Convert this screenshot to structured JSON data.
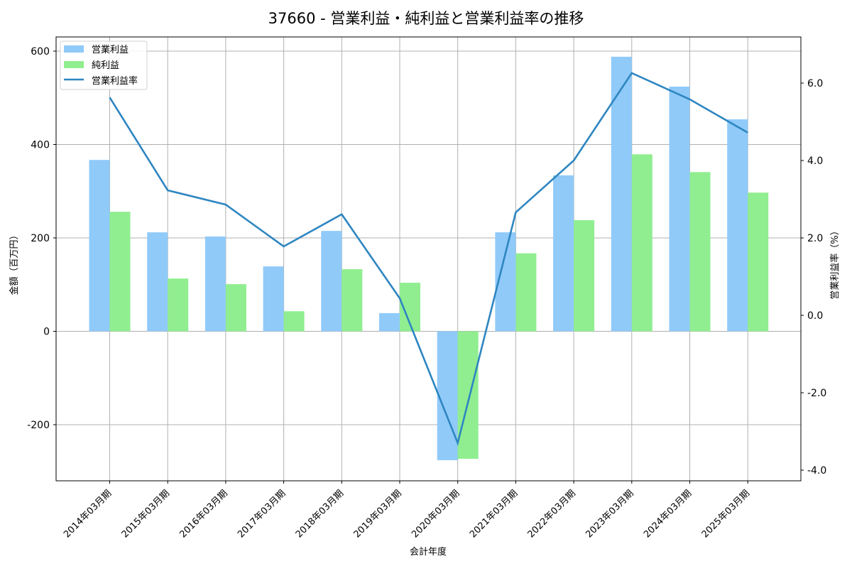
{
  "chart_data": {
    "type": "bar+line",
    "title": "37660 - 営業利益・純利益と営業利益率の推移",
    "xlabel": "会計年度",
    "ylabel": "金額（百万円）",
    "ylabel_right": "営業利益率（%）",
    "categories": [
      "2014年03月期",
      "2015年03月期",
      "2016年03月期",
      "2017年03月期",
      "2018年03月期",
      "2019年03月期",
      "2020年03月期",
      "2021年03月期",
      "2022年03月期",
      "2023年03月期",
      "2024年03月期",
      "2025年03月期"
    ],
    "series": [
      {
        "name": "営業利益",
        "type": "bar",
        "axis": "left",
        "color": "#90CAF9",
        "values": [
          367,
          212,
          203,
          139,
          215,
          39,
          -276,
          212,
          334,
          588,
          524,
          454
        ]
      },
      {
        "name": "純利益",
        "type": "bar",
        "axis": "left",
        "color": "#90EE90",
        "values": [
          256,
          113,
          101,
          43,
          133,
          104,
          -273,
          167,
          238,
          379,
          341,
          297
        ]
      },
      {
        "name": "営業利益率",
        "type": "line",
        "axis": "right",
        "color": "#2E86C1",
        "values": [
          5.63,
          3.23,
          2.86,
          1.78,
          2.61,
          0.44,
          -3.3,
          2.66,
          4.0,
          6.26,
          5.58,
          4.72
        ]
      }
    ],
    "ylim": [
      -320,
      630
    ],
    "ylim_right": [
      -4.2,
      7.2
    ],
    "yticks": [
      -200,
      0,
      200,
      400,
      600
    ],
    "yticks_right": [
      -4.0,
      -2.0,
      0.0,
      2.0,
      4.0,
      6.0
    ],
    "ytick_labels_right": [
      "-4.0",
      "-2.0",
      "0.0",
      "2.0",
      "4.0",
      "6.0"
    ],
    "grid": true,
    "legend_position": "upper left"
  }
}
